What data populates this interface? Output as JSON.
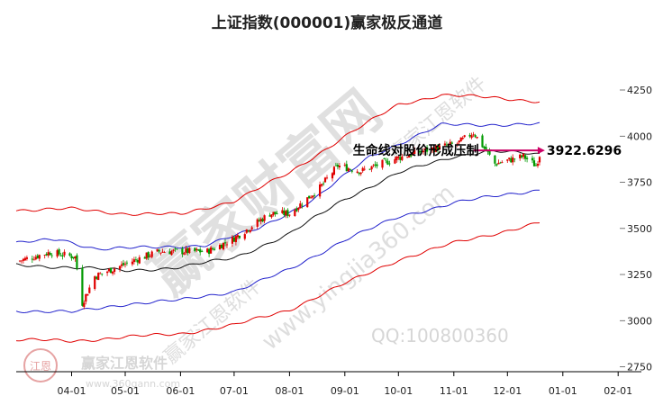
{
  "chart_data": {
    "type": "candlestick",
    "title": "上证指数(000001)赢家极反通道",
    "xlabel": "",
    "ylabel": "",
    "ylim": [
      2750,
      4350
    ],
    "y_ticks": [
      2750,
      3000,
      3250,
      3500,
      3750,
      4000,
      4250
    ],
    "x_tick_labels": [
      "04-01",
      "05-01",
      "06-01",
      "07-01",
      "08-01",
      "09-01",
      "10-01",
      "11-01",
      "12-01",
      "01-01",
      "02-01"
    ],
    "x_tick_dates": [
      "2025-04-01",
      "2025-05-01",
      "2025-06-01",
      "2025-07-01",
      "2025-08-01",
      "2025-09-01",
      "2025-10-01",
      "2025-11-01",
      "2025-12-01",
      "2026-01-01",
      "2026-02-01"
    ],
    "x_range": [
      "2025-03-01",
      "2026-02-14"
    ],
    "last_date": "2025-12-19",
    "grid": false,
    "annotation": {
      "label": "生命线对股价形成压制",
      "value_label": "3922.6296",
      "value": 3922.6296
    },
    "price_key_points": [
      [
        "2025-03-01",
        3320
      ],
      [
        "2025-03-20",
        3370
      ],
      [
        "2025-04-03",
        3345
      ],
      [
        "2025-04-07",
        3095
      ],
      [
        "2025-04-14",
        3240
      ],
      [
        "2025-05-07",
        3330
      ],
      [
        "2025-05-20",
        3375
      ],
      [
        "2025-06-16",
        3375
      ],
      [
        "2025-06-30",
        3440
      ],
      [
        "2025-07-21",
        3580
      ],
      [
        "2025-08-01",
        3580
      ],
      [
        "2025-08-18",
        3720
      ],
      [
        "2025-08-28",
        3840
      ],
      [
        "2025-09-10",
        3810
      ],
      [
        "2025-09-30",
        3880
      ],
      [
        "2025-10-15",
        3920
      ],
      [
        "2025-11-03",
        3960
      ],
      [
        "2025-11-12",
        4020
      ],
      [
        "2025-11-24",
        3850
      ],
      [
        "2025-12-10",
        3890
      ],
      [
        "2025-12-17",
        3840
      ],
      [
        "2025-12-19",
        3900
      ]
    ],
    "channel_bands": [
      {
        "name": "",
        "color": "#e00000",
        "points": [
          [
            "2025-03-01",
            3600
          ],
          [
            "2025-04-01",
            3605
          ],
          [
            "2025-05-01",
            3580
          ],
          [
            "2025-06-01",
            3575
          ],
          [
            "2025-07-01",
            3650
          ],
          [
            "2025-08-01",
            3800
          ],
          [
            "2025-09-01",
            4000
          ],
          [
            "2025-10-01",
            4170
          ],
          [
            "2025-10-25",
            4225
          ],
          [
            "2025-12-19",
            4190
          ]
        ]
      },
      {
        "name": "",
        "color": "#2222cc",
        "points": [
          [
            "2025-03-01",
            3420
          ],
          [
            "2025-03-25",
            3440
          ],
          [
            "2025-04-15",
            3390
          ],
          [
            "2025-05-15",
            3395
          ],
          [
            "2025-06-15",
            3410
          ],
          [
            "2025-07-15",
            3500
          ],
          [
            "2025-08-15",
            3660
          ],
          [
            "2025-09-15",
            3890
          ],
          [
            "2025-10-25",
            4060
          ],
          [
            "2025-12-19",
            4065
          ]
        ]
      },
      {
        "name": "",
        "color": "#111111",
        "points": [
          [
            "2025-03-01",
            3300
          ],
          [
            "2025-04-01",
            3290
          ],
          [
            "2025-05-01",
            3270
          ],
          [
            "2025-06-01",
            3290
          ],
          [
            "2025-07-01",
            3340
          ],
          [
            "2025-08-01",
            3470
          ],
          [
            "2025-09-01",
            3660
          ],
          [
            "2025-10-01",
            3800
          ],
          [
            "2025-11-01",
            3890
          ],
          [
            "2025-11-20",
            3920
          ],
          [
            "2025-12-19",
            3900
          ]
        ]
      },
      {
        "name": "",
        "color": "#2222cc",
        "points": [
          [
            "2025-03-01",
            3055
          ],
          [
            "2025-04-01",
            3045
          ],
          [
            "2025-05-01",
            3090
          ],
          [
            "2025-06-01",
            3110
          ],
          [
            "2025-07-01",
            3160
          ],
          [
            "2025-08-01",
            3275
          ],
          [
            "2025-09-01",
            3440
          ],
          [
            "2025-10-01",
            3560
          ],
          [
            "2025-11-01",
            3640
          ],
          [
            "2025-12-19",
            3710
          ]
        ]
      },
      {
        "name": "",
        "color": "#e00000",
        "points": [
          [
            "2025-03-01",
            2895
          ],
          [
            "2025-04-01",
            2890
          ],
          [
            "2025-05-01",
            2910
          ],
          [
            "2025-06-01",
            2930
          ],
          [
            "2025-07-01",
            2975
          ],
          [
            "2025-08-01",
            3060
          ],
          [
            "2025-09-01",
            3200
          ],
          [
            "2025-10-01",
            3330
          ],
          [
            "2025-11-01",
            3420
          ],
          [
            "2025-12-19",
            3530
          ]
        ]
      }
    ]
  },
  "watermarks": {
    "main": "赢家财富网",
    "url": "www.yingjia360.com",
    "app": "赢家江恩软件",
    "qq": "QQ:100800360",
    "brand": "赢家江恩软件",
    "logo_text": "江恩",
    "site": "www.360gann.com"
  },
  "colors": {
    "up": "#e00000",
    "down": "#009900",
    "arrow": "#cc0066",
    "axis": "#000000"
  }
}
